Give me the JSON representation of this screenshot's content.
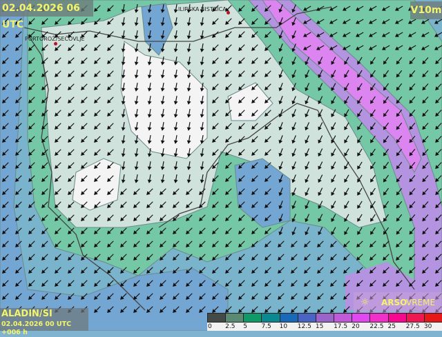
{
  "header": {
    "valid_time": "02.04.2026 06 UTC",
    "parameter": "V10m"
  },
  "footer": {
    "model": "ALADIN/SI",
    "run": "02.04.2026 00 UTC +006 h",
    "brand_bold": "ARSO",
    "brand_light": "VREME"
  },
  "cities": [
    {
      "name": "PORTOROŽ/SEČOVLJE"
    },
    {
      "name": "ILIRSKA BISTRICA"
    }
  ],
  "legend": {
    "unit_hint": "wind speed",
    "colors": [
      "#444a48",
      "#5a8a72",
      "#109a68",
      "#0a8a90",
      "#1a68b8",
      "#4a64c4",
      "#9a64c8",
      "#c05ad8",
      "#e048f0",
      "#f030c8",
      "#f80890",
      "#f01850",
      "#e81818"
    ],
    "labels": [
      "0",
      "2.5",
      "5",
      "7.5",
      "10",
      "12.5",
      "15",
      "17.5",
      "20",
      "22.5",
      "25",
      "27.5",
      "30"
    ]
  },
  "map_colors": {
    "calm": "#f2f2f2",
    "light": "#cfe2dc",
    "green": "#74c8a6",
    "teal": "#7ab9c2",
    "blue": "#74a6d4",
    "violet": "#b494e0",
    "magenta": "#dc84f0"
  }
}
